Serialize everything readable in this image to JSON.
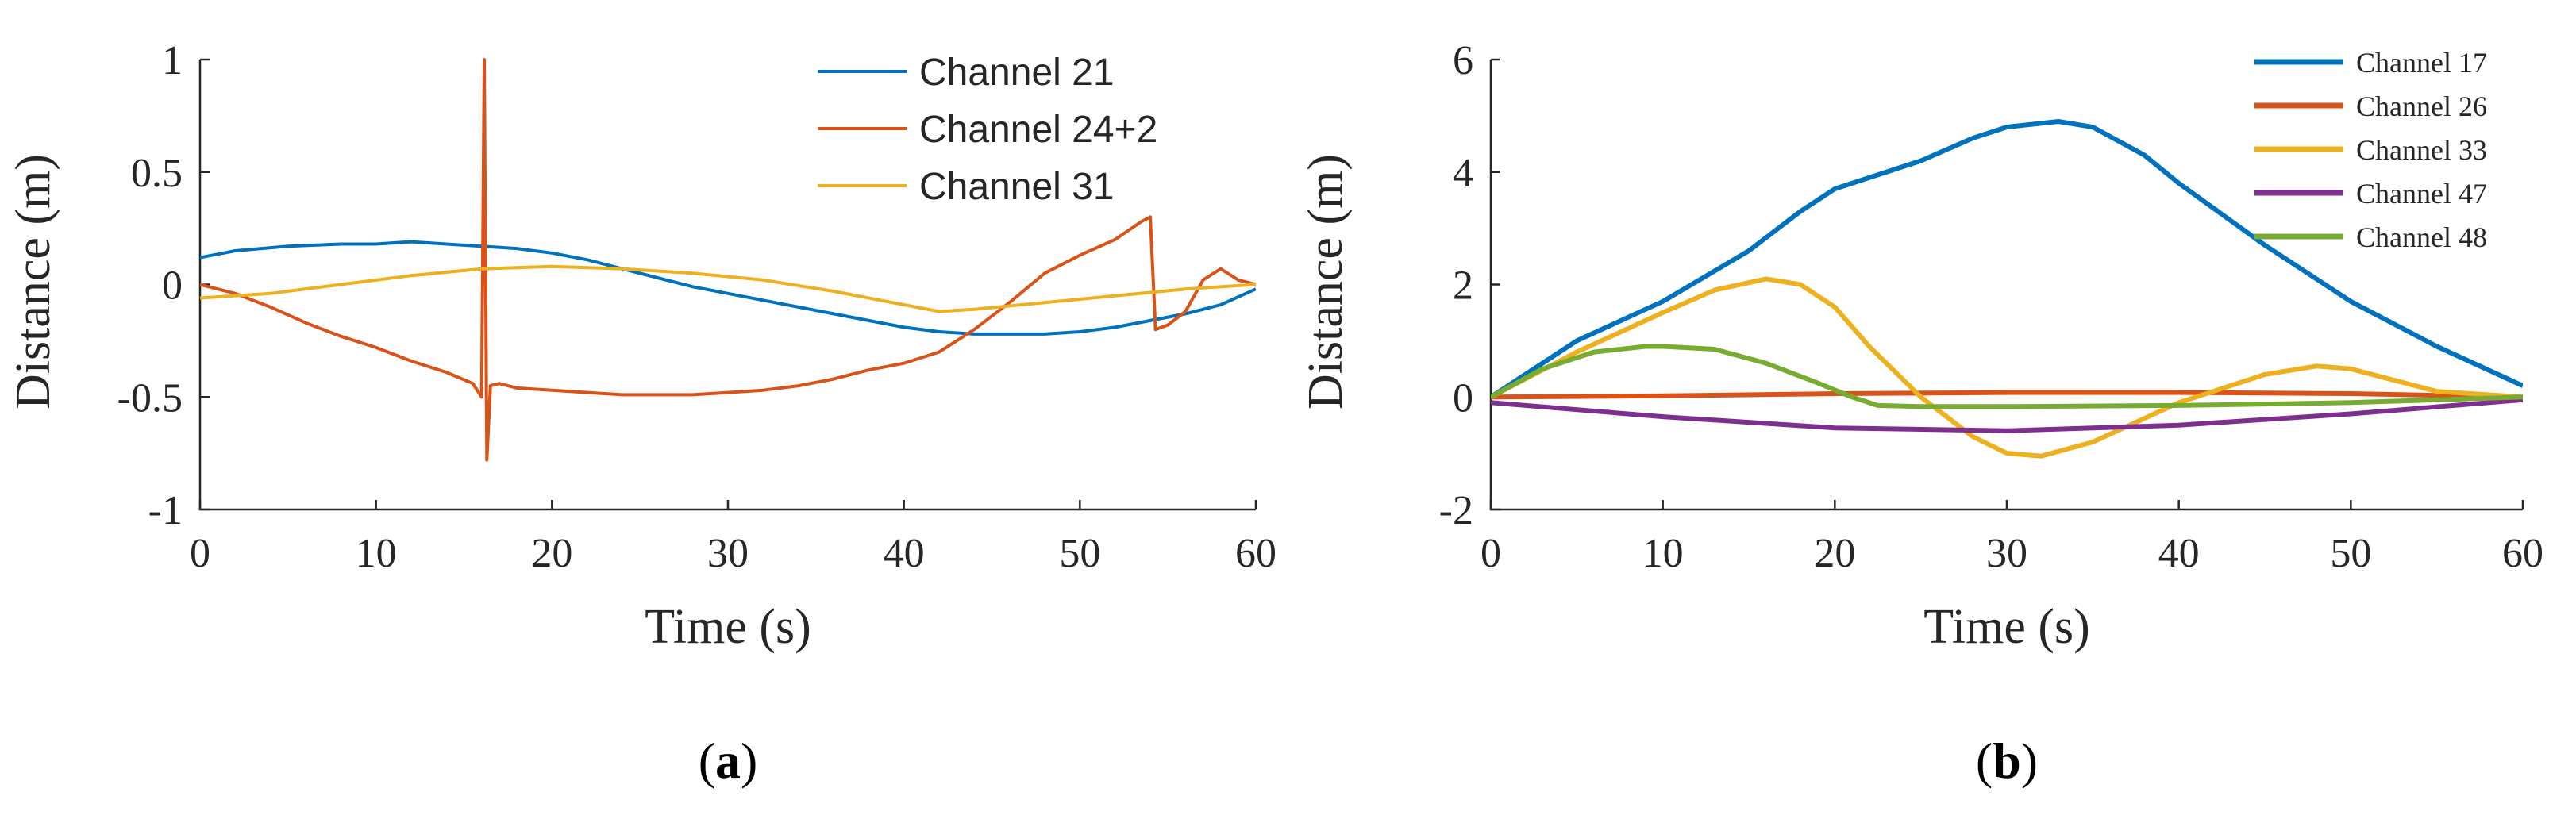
{
  "chart_data": [
    {
      "type": "line",
      "panel_label": "a",
      "xlabel": "Time (s)",
      "ylabel": "Distance (m)",
      "xlim": [
        0,
        60
      ],
      "ylim": [
        -1,
        1
      ],
      "xticks": [
        0,
        10,
        20,
        30,
        40,
        50,
        60
      ],
      "yticks": [
        -1,
        -0.5,
        0,
        0.5,
        1
      ],
      "xtick_labels": [
        "0",
        "10",
        "20",
        "30",
        "40",
        "50",
        "60"
      ],
      "ytick_labels": [
        "-1",
        "-0.5",
        "0",
        "0.5",
        "1"
      ],
      "legend_position": "top-right",
      "series": [
        {
          "name": "Channel 21",
          "color": "#0072BD",
          "x": [
            0,
            2,
            5,
            8,
            10,
            12,
            14,
            16,
            18,
            20,
            22,
            24,
            26,
            28,
            30,
            32,
            34,
            36,
            38,
            40,
            42,
            44,
            46,
            48,
            50,
            52,
            54,
            56,
            58,
            60
          ],
          "y": [
            0.12,
            0.15,
            0.17,
            0.18,
            0.18,
            0.19,
            0.18,
            0.17,
            0.16,
            0.14,
            0.11,
            0.07,
            0.03,
            -0.01,
            -0.04,
            -0.07,
            -0.1,
            -0.13,
            -0.16,
            -0.19,
            -0.21,
            -0.22,
            -0.22,
            -0.22,
            -0.21,
            -0.19,
            -0.16,
            -0.13,
            -0.09,
            -0.02
          ]
        },
        {
          "name": "Channel 24+2",
          "color": "#D95319",
          "x": [
            0,
            2,
            4,
            6,
            8,
            10,
            12,
            14,
            15.5,
            16,
            16.15,
            16.3,
            16.5,
            17,
            18,
            20,
            22,
            24,
            26,
            28,
            30,
            32,
            34,
            36,
            38,
            40,
            42,
            44,
            46,
            48,
            50,
            52,
            53.5,
            54,
            54.3,
            55,
            56,
            57,
            58,
            59,
            60
          ],
          "y": [
            0,
            -0.04,
            -0.1,
            -0.17,
            -0.23,
            -0.28,
            -0.34,
            -0.39,
            -0.44,
            -0.5,
            1.0,
            -0.78,
            -0.45,
            -0.44,
            -0.46,
            -0.47,
            -0.48,
            -0.49,
            -0.49,
            -0.49,
            -0.48,
            -0.47,
            -0.45,
            -0.42,
            -0.38,
            -0.35,
            -0.3,
            -0.2,
            -0.08,
            0.05,
            0.13,
            0.2,
            0.28,
            0.3,
            -0.2,
            -0.18,
            -0.12,
            0.02,
            0.07,
            0.02,
            0.0
          ]
        },
        {
          "name": "Channel 31",
          "color": "#EDB120",
          "x": [
            0,
            4,
            8,
            12,
            16,
            20,
            24,
            28,
            32,
            36,
            40,
            42,
            44,
            48,
            52,
            56,
            60
          ],
          "y": [
            -0.06,
            -0.04,
            0.0,
            0.04,
            0.07,
            0.08,
            0.07,
            0.05,
            0.02,
            -0.03,
            -0.09,
            -0.12,
            -0.11,
            -0.08,
            -0.05,
            -0.02,
            0.0
          ]
        }
      ]
    },
    {
      "type": "line",
      "panel_label": "b",
      "xlabel": "Time (s)",
      "ylabel": "Distance (m)",
      "xlim": [
        0,
        60
      ],
      "ylim": [
        -2,
        6
      ],
      "xticks": [
        0,
        10,
        20,
        30,
        40,
        50,
        60
      ],
      "yticks": [
        -2,
        0,
        2,
        4,
        6
      ],
      "xtick_labels": [
        "0",
        "10",
        "20",
        "30",
        "40",
        "50",
        "60"
      ],
      "ytick_labels": [
        "-2",
        "0",
        "2",
        "4",
        "6"
      ],
      "legend_position": "top-right",
      "series": [
        {
          "name": "Channel 17",
          "color": "#0072BD",
          "x": [
            0,
            5,
            10,
            15,
            18,
            20,
            25,
            28,
            30,
            33,
            35,
            38,
            40,
            45,
            50,
            55,
            60
          ],
          "y": [
            0,
            1.0,
            1.7,
            2.6,
            3.3,
            3.7,
            4.2,
            4.6,
            4.8,
            4.9,
            4.8,
            4.3,
            3.8,
            2.7,
            1.7,
            0.9,
            0.2
          ]
        },
        {
          "name": "Channel 26",
          "color": "#D95319",
          "x": [
            0,
            10,
            20,
            30,
            40,
            50,
            60
          ],
          "y": [
            0,
            0.02,
            0.06,
            0.08,
            0.08,
            0.06,
            0.0
          ]
        },
        {
          "name": "Channel 33",
          "color": "#EDB120",
          "x": [
            0,
            5,
            10,
            13,
            16,
            18,
            20,
            22,
            25,
            28,
            30,
            32,
            35,
            40,
            45,
            48,
            50,
            55,
            60
          ],
          "y": [
            0,
            0.8,
            1.5,
            1.9,
            2.1,
            2.0,
            1.6,
            0.9,
            0.0,
            -0.7,
            -1.0,
            -1.05,
            -0.8,
            -0.1,
            0.4,
            0.55,
            0.5,
            0.1,
            0.0
          ]
        },
        {
          "name": "Channel 47",
          "color": "#7E2F8E",
          "x": [
            0,
            10,
            20,
            30,
            40,
            50,
            60
          ],
          "y": [
            -0.1,
            -0.35,
            -0.55,
            -0.6,
            -0.5,
            -0.3,
            -0.05
          ]
        },
        {
          "name": "Channel 48",
          "color": "#77AC30",
          "x": [
            0,
            3,
            6,
            9,
            10,
            13,
            16,
            19,
            21,
            22.5,
            25,
            30,
            40,
            50,
            60
          ],
          "y": [
            0,
            0.5,
            0.8,
            0.9,
            0.9,
            0.85,
            0.6,
            0.25,
            0.0,
            -0.15,
            -0.17,
            -0.17,
            -0.15,
            -0.1,
            0.0
          ]
        }
      ]
    }
  ]
}
